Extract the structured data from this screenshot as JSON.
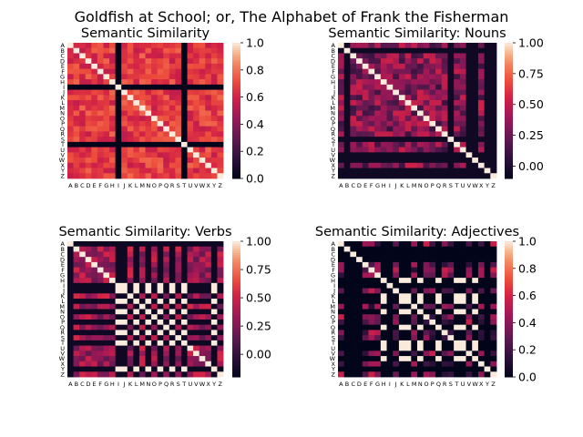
{
  "figure": {
    "suptitle": "Goldfish at School; or, The Alphabet of Frank the Fisherman",
    "colormap": "rocket",
    "letters": [
      "A",
      "B",
      "C",
      "D",
      "E",
      "F",
      "G",
      "H",
      "I",
      "J",
      "K",
      "L",
      "M",
      "N",
      "O",
      "P",
      "Q",
      "R",
      "S",
      "T",
      "U",
      "V",
      "W",
      "X",
      "Y",
      "Z"
    ]
  },
  "chart_data": [
    {
      "type": "heatmap",
      "title": "Semantic Similarity",
      "vmin": 0.0,
      "vmax": 1.0,
      "colorbar_ticks": [
        "0.0",
        "0.2",
        "0.4",
        "0.6",
        "0.8",
        "1.0"
      ],
      "colorbar_tick_values": [
        0.0,
        0.2,
        0.4,
        0.6,
        0.8,
        1.0
      ],
      "base_range": [
        0.55,
        0.78
      ],
      "zero_letters": [
        "I",
        "T"
      ],
      "diag": 1.0,
      "seed": 11
    },
    {
      "type": "heatmap",
      "title": "Semantic Similarity: Nouns",
      "vmin": -0.1,
      "vmax": 1.0,
      "colorbar_ticks": [
        "0.00",
        "0.25",
        "0.50",
        "0.75",
        "1.00"
      ],
      "colorbar_tick_values": [
        0.0,
        0.25,
        0.5,
        0.75,
        1.0
      ],
      "base_range": [
        0.1,
        0.55
      ],
      "zero_letters": [
        "B",
        "S",
        "V",
        "W",
        "Y",
        "Z"
      ],
      "zero_value": -0.05,
      "diag": 1.0,
      "seed": 29
    },
    {
      "type": "heatmap",
      "title": "Semantic Similarity: Verbs",
      "vmin": -0.2,
      "vmax": 1.0,
      "colorbar_ticks": [
        "0.00",
        "0.25",
        "0.50",
        "0.75",
        "1.00"
      ],
      "colorbar_tick_values": [
        0.0,
        0.25,
        0.5,
        0.75,
        1.0
      ],
      "base_range": [
        0.15,
        0.55
      ],
      "zero_letters": [
        "A",
        "I",
        "J",
        "L",
        "N",
        "P",
        "R",
        "T",
        "Y"
      ],
      "zero_value": -0.15,
      "pair_letters": [
        "I",
        "J",
        "L",
        "N",
        "P",
        "R",
        "T",
        "Y"
      ],
      "pair_value": 1.0,
      "diag": 1.0,
      "seed": 47
    },
    {
      "type": "heatmap",
      "title": "Semantic Similarity: Adjectives",
      "vmin": 0.0,
      "vmax": 1.0,
      "colorbar_ticks": [
        "0.0",
        "0.2",
        "0.4",
        "0.6",
        "0.8",
        "1.0"
      ],
      "colorbar_tick_values": [
        0.0,
        0.2,
        0.4,
        0.6,
        0.8,
        1.0
      ],
      "base_range": [
        0.1,
        0.6
      ],
      "zero_letters": [
        "B",
        "C",
        "D",
        "H",
        "I",
        "K",
        "L",
        "N",
        "Q",
        "T",
        "U",
        "W",
        "Y"
      ],
      "zero_value": 0.0,
      "pair_letters": [
        "H",
        "K",
        "L",
        "N",
        "Q",
        "T",
        "U",
        "W"
      ],
      "pair_value": 1.0,
      "diag": 1.0,
      "seed": 83
    }
  ]
}
